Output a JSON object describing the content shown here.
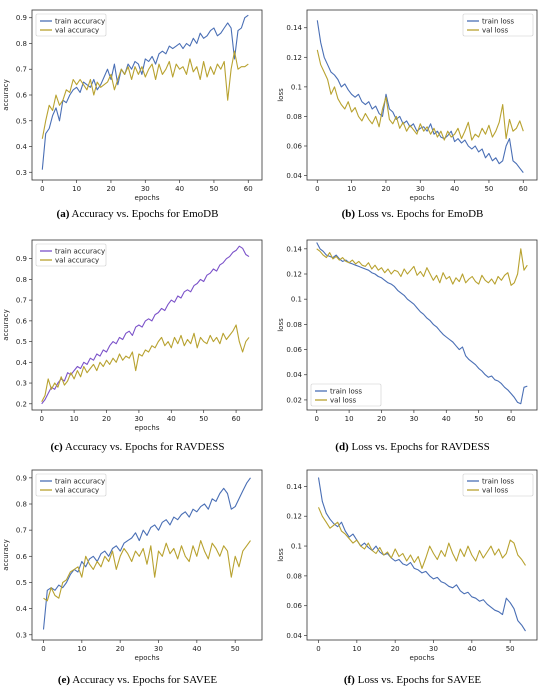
{
  "colors": {
    "train": "#4a6fb5",
    "train_purple": "#7b52c9",
    "val": "#b8a230"
  },
  "captions": [
    {
      "label": "(a)",
      "text": " Accuracy vs. Epochs for EmoDB"
    },
    {
      "label": "(b)",
      "text": " Loss vs. Epochs for EmoDB"
    },
    {
      "label": "(c)",
      "text": " Accuracy vs. Epochs for RAVDESS"
    },
    {
      "label": "(d)",
      "text": " Loss vs. Epochs for RAVDESS"
    },
    {
      "label": "(e)",
      "text": " Accuracy vs. Epochs for SAVEE"
    },
    {
      "label": "(f)",
      "text": " Loss vs. Epochs for SAVEE"
    }
  ],
  "chart_data": [
    {
      "type": "line",
      "xlabel": "epochs",
      "ylabel": "accuracy",
      "xlim": [
        -3,
        64
      ],
      "ylim": [
        0.27,
        0.93
      ],
      "xticks": [
        0,
        10,
        20,
        30,
        40,
        50,
        60
      ],
      "yticks": [
        0.3,
        0.4,
        0.5,
        0.6,
        0.7,
        0.8,
        0.9
      ],
      "legend": "top-left",
      "series": [
        {
          "name": "train accuracy",
          "color": "train",
          "x0": 0,
          "values": [
            0.31,
            0.45,
            0.47,
            0.52,
            0.55,
            0.5,
            0.58,
            0.57,
            0.6,
            0.62,
            0.63,
            0.61,
            0.65,
            0.64,
            0.63,
            0.66,
            0.62,
            0.64,
            0.67,
            0.7,
            0.66,
            0.72,
            0.64,
            0.7,
            0.68,
            0.72,
            0.7,
            0.73,
            0.72,
            0.68,
            0.74,
            0.73,
            0.75,
            0.72,
            0.76,
            0.77,
            0.76,
            0.79,
            0.78,
            0.79,
            0.8,
            0.78,
            0.8,
            0.79,
            0.82,
            0.8,
            0.84,
            0.82,
            0.83,
            0.85,
            0.86,
            0.83,
            0.84,
            0.86,
            0.88,
            0.86,
            0.74,
            0.85,
            0.86,
            0.9,
            0.91
          ]
        },
        {
          "name": "val accuracy",
          "color": "val",
          "x0": 0,
          "values": [
            0.43,
            0.5,
            0.56,
            0.54,
            0.6,
            0.56,
            0.58,
            0.62,
            0.61,
            0.66,
            0.64,
            0.66,
            0.64,
            0.62,
            0.66,
            0.6,
            0.65,
            0.63,
            0.64,
            0.65,
            0.68,
            0.62,
            0.66,
            0.7,
            0.68,
            0.71,
            0.66,
            0.71,
            0.68,
            0.71,
            0.67,
            0.7,
            0.72,
            0.66,
            0.72,
            0.68,
            0.7,
            0.73,
            0.67,
            0.72,
            0.7,
            0.71,
            0.68,
            0.74,
            0.69,
            0.71,
            0.66,
            0.73,
            0.67,
            0.71,
            0.68,
            0.72,
            0.7,
            0.73,
            0.58,
            0.7,
            0.77,
            0.7,
            0.71,
            0.71,
            0.72
          ]
        }
      ]
    },
    {
      "type": "line",
      "xlabel": "epochs",
      "ylabel": "loss",
      "xlim": [
        -3,
        64
      ],
      "ylim": [
        0.037,
        0.152
      ],
      "xticks": [
        0,
        10,
        20,
        30,
        40,
        50,
        60
      ],
      "yticks": [
        0.04,
        0.06,
        0.08,
        0.1,
        0.12,
        0.14
      ],
      "legend": "top-right",
      "series": [
        {
          "name": "train loss",
          "color": "train",
          "x0": 0,
          "values": [
            0.145,
            0.13,
            0.12,
            0.115,
            0.11,
            0.108,
            0.105,
            0.1,
            0.102,
            0.098,
            0.095,
            0.093,
            0.095,
            0.09,
            0.088,
            0.09,
            0.085,
            0.087,
            0.082,
            0.08,
            0.095,
            0.085,
            0.083,
            0.078,
            0.08,
            0.075,
            0.077,
            0.073,
            0.075,
            0.07,
            0.072,
            0.073,
            0.07,
            0.075,
            0.068,
            0.07,
            0.066,
            0.065,
            0.067,
            0.07,
            0.063,
            0.065,
            0.062,
            0.064,
            0.06,
            0.058,
            0.06,
            0.056,
            0.058,
            0.052,
            0.055,
            0.05,
            0.052,
            0.048,
            0.05,
            0.06,
            0.065,
            0.05,
            0.048,
            0.045,
            0.042
          ]
        },
        {
          "name": "val loss",
          "color": "val",
          "x0": 0,
          "values": [
            0.125,
            0.115,
            0.11,
            0.105,
            0.095,
            0.1,
            0.092,
            0.088,
            0.085,
            0.09,
            0.083,
            0.086,
            0.08,
            0.077,
            0.082,
            0.078,
            0.075,
            0.08,
            0.073,
            0.085,
            0.093,
            0.078,
            0.075,
            0.08,
            0.072,
            0.076,
            0.07,
            0.074,
            0.071,
            0.068,
            0.075,
            0.07,
            0.073,
            0.068,
            0.072,
            0.066,
            0.07,
            0.064,
            0.07,
            0.066,
            0.068,
            0.072,
            0.065,
            0.07,
            0.076,
            0.064,
            0.068,
            0.066,
            0.072,
            0.068,
            0.074,
            0.066,
            0.07,
            0.076,
            0.088,
            0.065,
            0.078,
            0.07,
            0.072,
            0.077,
            0.07
          ]
        }
      ]
    },
    {
      "type": "line",
      "xlabel": "epochs",
      "ylabel": "accuracy",
      "xlim": [
        -3,
        68
      ],
      "ylim": [
        0.17,
        0.99
      ],
      "xticks": [
        0,
        10,
        20,
        30,
        40,
        50,
        60
      ],
      "yticks": [
        0.2,
        0.3,
        0.4,
        0.5,
        0.6,
        0.7,
        0.8,
        0.9
      ],
      "legend": "top-left",
      "series": [
        {
          "name": "train accuracy",
          "color": "train_purple",
          "x0": 0,
          "values": [
            0.2,
            0.22,
            0.25,
            0.28,
            0.27,
            0.3,
            0.32,
            0.31,
            0.35,
            0.34,
            0.36,
            0.38,
            0.37,
            0.4,
            0.39,
            0.42,
            0.41,
            0.44,
            0.43,
            0.46,
            0.45,
            0.48,
            0.5,
            0.49,
            0.52,
            0.51,
            0.54,
            0.55,
            0.53,
            0.57,
            0.58,
            0.57,
            0.6,
            0.61,
            0.6,
            0.63,
            0.64,
            0.66,
            0.65,
            0.68,
            0.7,
            0.69,
            0.72,
            0.71,
            0.74,
            0.75,
            0.74,
            0.77,
            0.78,
            0.8,
            0.79,
            0.82,
            0.83,
            0.85,
            0.84,
            0.87,
            0.88,
            0.9,
            0.91,
            0.93,
            0.94,
            0.96,
            0.95,
            0.92,
            0.91
          ]
        },
        {
          "name": "val accuracy",
          "color": "val",
          "x0": 0,
          "values": [
            0.21,
            0.24,
            0.32,
            0.27,
            0.3,
            0.28,
            0.33,
            0.29,
            0.31,
            0.35,
            0.32,
            0.36,
            0.33,
            0.38,
            0.35,
            0.37,
            0.39,
            0.36,
            0.4,
            0.38,
            0.41,
            0.39,
            0.42,
            0.4,
            0.44,
            0.41,
            0.43,
            0.42,
            0.45,
            0.36,
            0.44,
            0.43,
            0.46,
            0.45,
            0.48,
            0.47,
            0.5,
            0.52,
            0.48,
            0.5,
            0.47,
            0.52,
            0.49,
            0.53,
            0.48,
            0.51,
            0.49,
            0.54,
            0.47,
            0.52,
            0.5,
            0.49,
            0.53,
            0.5,
            0.52,
            0.49,
            0.54,
            0.51,
            0.53,
            0.55,
            0.58,
            0.5,
            0.45,
            0.5,
            0.52
          ]
        }
      ]
    },
    {
      "type": "line",
      "xlabel": "",
      "ylabel": "loss",
      "xlim": [
        -3,
        68
      ],
      "ylim": [
        0.012,
        0.147
      ],
      "xticks": [
        0,
        10,
        20,
        30,
        40,
        50,
        60
      ],
      "yticks": [
        0.02,
        0.04,
        0.06,
        0.08,
        0.1,
        0.12,
        0.14
      ],
      "legend": "bottom-left",
      "series": [
        {
          "name": "train loss",
          "color": "train",
          "x0": 0,
          "values": [
            0.145,
            0.14,
            0.138,
            0.135,
            0.134,
            0.133,
            0.135,
            0.132,
            0.13,
            0.131,
            0.129,
            0.128,
            0.127,
            0.126,
            0.125,
            0.124,
            0.123,
            0.121,
            0.12,
            0.118,
            0.117,
            0.115,
            0.113,
            0.112,
            0.11,
            0.107,
            0.105,
            0.103,
            0.1,
            0.098,
            0.096,
            0.093,
            0.09,
            0.088,
            0.085,
            0.083,
            0.08,
            0.078,
            0.075,
            0.072,
            0.07,
            0.068,
            0.066,
            0.063,
            0.06,
            0.062,
            0.055,
            0.052,
            0.05,
            0.048,
            0.045,
            0.043,
            0.04,
            0.038,
            0.039,
            0.036,
            0.035,
            0.033,
            0.03,
            0.028,
            0.025,
            0.022,
            0.018,
            0.017,
            0.03,
            0.031
          ]
        },
        {
          "name": "val loss",
          "color": "val",
          "x0": 0,
          "values": [
            0.14,
            0.138,
            0.135,
            0.133,
            0.137,
            0.132,
            0.134,
            0.131,
            0.133,
            0.13,
            0.129,
            0.131,
            0.128,
            0.13,
            0.127,
            0.126,
            0.129,
            0.124,
            0.127,
            0.123,
            0.125,
            0.121,
            0.124,
            0.12,
            0.123,
            0.122,
            0.118,
            0.124,
            0.12,
            0.123,
            0.126,
            0.119,
            0.122,
            0.118,
            0.125,
            0.12,
            0.115,
            0.119,
            0.113,
            0.121,
            0.116,
            0.118,
            0.112,
            0.117,
            0.114,
            0.12,
            0.113,
            0.116,
            0.118,
            0.114,
            0.112,
            0.119,
            0.115,
            0.113,
            0.116,
            0.112,
            0.118,
            0.115,
            0.119,
            0.121,
            0.111,
            0.113,
            0.12,
            0.14,
            0.123,
            0.127
          ]
        }
      ]
    },
    {
      "type": "line",
      "xlabel": "epochs",
      "ylabel": "accuracy",
      "xlim": [
        -3,
        57
      ],
      "ylim": [
        0.28,
        0.93
      ],
      "xticks": [
        0,
        10,
        20,
        30,
        40,
        50
      ],
      "yticks": [
        0.3,
        0.4,
        0.5,
        0.6,
        0.7,
        0.8,
        0.9
      ],
      "legend": "top-left",
      "series": [
        {
          "name": "train accuracy",
          "color": "train",
          "x0": 0,
          "values": [
            0.32,
            0.47,
            0.48,
            0.47,
            0.49,
            0.48,
            0.5,
            0.53,
            0.55,
            0.54,
            0.58,
            0.56,
            0.59,
            0.6,
            0.58,
            0.61,
            0.62,
            0.6,
            0.63,
            0.64,
            0.62,
            0.65,
            0.66,
            0.67,
            0.69,
            0.66,
            0.7,
            0.68,
            0.71,
            0.72,
            0.7,
            0.73,
            0.74,
            0.72,
            0.75,
            0.74,
            0.76,
            0.77,
            0.75,
            0.78,
            0.77,
            0.79,
            0.8,
            0.78,
            0.82,
            0.81,
            0.84,
            0.86,
            0.84,
            0.78,
            0.79,
            0.82,
            0.85,
            0.88,
            0.9
          ]
        },
        {
          "name": "val accuracy",
          "color": "val",
          "x0": 0,
          "values": [
            0.44,
            0.43,
            0.48,
            0.45,
            0.44,
            0.5,
            0.51,
            0.54,
            0.55,
            0.56,
            0.52,
            0.6,
            0.57,
            0.55,
            0.58,
            0.56,
            0.6,
            0.58,
            0.62,
            0.55,
            0.6,
            0.63,
            0.61,
            0.58,
            0.62,
            0.6,
            0.63,
            0.57,
            0.64,
            0.52,
            0.62,
            0.6,
            0.65,
            0.61,
            0.63,
            0.59,
            0.64,
            0.6,
            0.58,
            0.64,
            0.6,
            0.66,
            0.62,
            0.59,
            0.65,
            0.63,
            0.6,
            0.64,
            0.62,
            0.52,
            0.6,
            0.56,
            0.62,
            0.64,
            0.66
          ]
        }
      ]
    },
    {
      "type": "line",
      "xlabel": "epochs",
      "ylabel": "loss",
      "xlim": [
        -3,
        57
      ],
      "ylim": [
        0.037,
        0.151
      ],
      "xticks": [
        0,
        10,
        20,
        30,
        40,
        50
      ],
      "yticks": [
        0.04,
        0.06,
        0.08,
        0.1,
        0.12,
        0.14
      ],
      "legend": "top-right",
      "series": [
        {
          "name": "train loss",
          "color": "train",
          "x0": 0,
          "values": [
            0.146,
            0.13,
            0.122,
            0.118,
            0.115,
            0.113,
            0.116,
            0.11,
            0.106,
            0.108,
            0.104,
            0.1,
            0.102,
            0.099,
            0.097,
            0.1,
            0.096,
            0.094,
            0.095,
            0.092,
            0.09,
            0.091,
            0.088,
            0.087,
            0.089,
            0.085,
            0.084,
            0.082,
            0.083,
            0.08,
            0.078,
            0.079,
            0.076,
            0.075,
            0.073,
            0.072,
            0.074,
            0.07,
            0.068,
            0.069,
            0.066,
            0.065,
            0.063,
            0.064,
            0.061,
            0.059,
            0.057,
            0.056,
            0.054,
            0.065,
            0.062,
            0.058,
            0.05,
            0.047,
            0.043
          ]
        },
        {
          "name": "val loss",
          "color": "val",
          "x0": 0,
          "values": [
            0.126,
            0.12,
            0.116,
            0.112,
            0.114,
            0.116,
            0.11,
            0.108,
            0.105,
            0.102,
            0.104,
            0.1,
            0.098,
            0.102,
            0.097,
            0.095,
            0.099,
            0.094,
            0.096,
            0.092,
            0.098,
            0.093,
            0.095,
            0.09,
            0.094,
            0.089,
            0.093,
            0.085,
            0.092,
            0.1,
            0.095,
            0.091,
            0.097,
            0.093,
            0.102,
            0.095,
            0.09,
            0.098,
            0.093,
            0.1,
            0.094,
            0.09,
            0.097,
            0.092,
            0.096,
            0.1,
            0.094,
            0.098,
            0.092,
            0.095,
            0.104,
            0.102,
            0.094,
            0.091,
            0.087
          ]
        }
      ]
    }
  ]
}
